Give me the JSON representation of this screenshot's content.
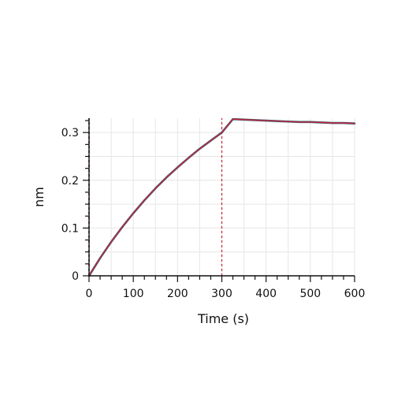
{
  "chart_data": {
    "type": "line",
    "title": "",
    "xlabel": "Time (s)",
    "ylabel": "nm",
    "xlim": [
      0,
      600
    ],
    "ylim": [
      0,
      0.33
    ],
    "x_ticks": [
      0,
      100,
      200,
      300,
      400,
      500,
      600
    ],
    "y_ticks": [
      0,
      0.1,
      0.2,
      0.3
    ],
    "x_tick_labels": [
      "0",
      "100",
      "200",
      "300",
      "400",
      "500",
      "600"
    ],
    "y_tick_labels": [
      "0",
      "0.1",
      "0.2",
      "0.3"
    ],
    "grid": true,
    "legend": "none",
    "reference_lines": [
      {
        "axis": "x",
        "value": 0,
        "style": "dashed",
        "color": "#cc2a36"
      },
      {
        "axis": "x",
        "value": 300,
        "style": "dashed",
        "color": "#cc2a36"
      }
    ],
    "series": [
      {
        "role": "measured",
        "color": "#2f5f73",
        "x": [
          0,
          25,
          50,
          75,
          100,
          125,
          150,
          175,
          200,
          225,
          250,
          275,
          300,
          325,
          350,
          375,
          400,
          425,
          450,
          475,
          500,
          525,
          550,
          575,
          600
        ],
        "y": [
          0.0,
          0.037,
          0.071,
          0.102,
          0.131,
          0.158,
          0.183,
          0.206,
          0.227,
          0.247,
          0.266,
          0.283,
          0.3,
          0.328,
          0.327,
          0.326,
          0.325,
          0.324,
          0.323,
          0.322,
          0.322,
          0.321,
          0.32,
          0.32,
          0.319
        ]
      },
      {
        "role": "fit",
        "color": "#d0213a",
        "x": [
          0,
          25,
          50,
          75,
          100,
          125,
          150,
          175,
          200,
          225,
          250,
          275,
          300,
          325,
          350,
          375,
          400,
          425,
          450,
          475,
          500,
          525,
          550,
          575,
          600
        ],
        "y": [
          0.0,
          0.037,
          0.071,
          0.102,
          0.131,
          0.158,
          0.183,
          0.206,
          0.227,
          0.247,
          0.266,
          0.283,
          0.3,
          0.328,
          0.327,
          0.326,
          0.325,
          0.324,
          0.323,
          0.322,
          0.322,
          0.321,
          0.32,
          0.32,
          0.319
        ]
      }
    ]
  }
}
